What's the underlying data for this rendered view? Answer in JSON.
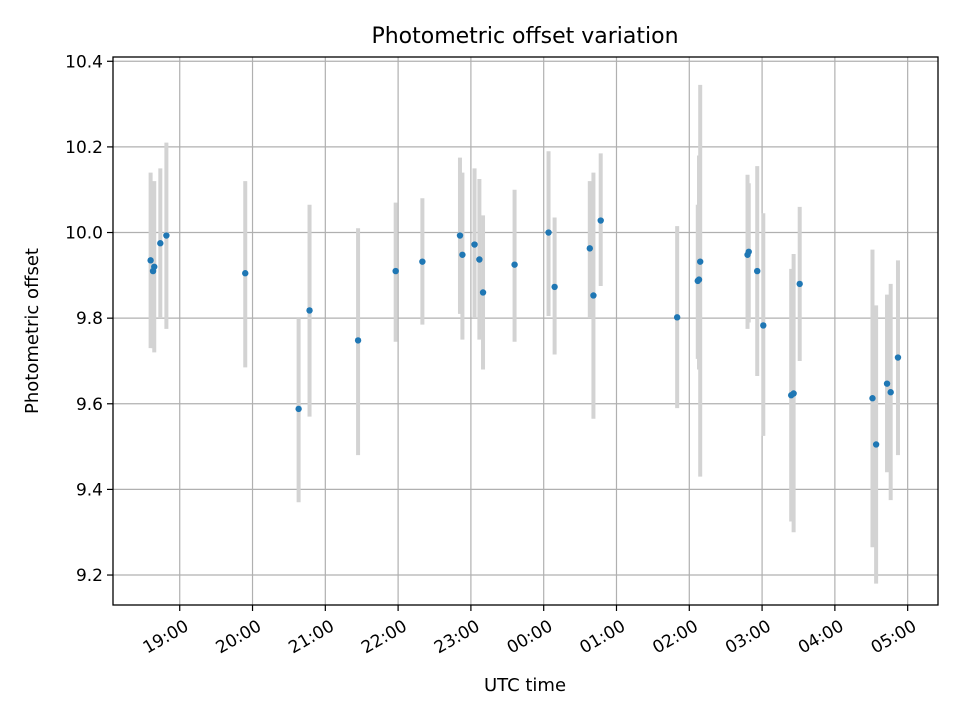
{
  "chart_data": {
    "type": "scatter",
    "title": "Photometric offset variation",
    "xlabel": "UTC time",
    "ylabel": "Photometric offset",
    "xlim": [
      "18:05",
      "05:25"
    ],
    "ylim": [
      9.13,
      10.41
    ],
    "x_ticks": [
      "19:00",
      "20:00",
      "21:00",
      "22:00",
      "23:00",
      "00:00",
      "01:00",
      "02:00",
      "03:00",
      "04:00",
      "05:00"
    ],
    "y_ticks": [
      "9.2",
      "9.4",
      "9.6",
      "9.8",
      "10.0",
      "10.2",
      "10.4"
    ],
    "grid": true,
    "colors": {
      "points": "#1f77b4",
      "errorbars": "#d3d3d3",
      "grid": "#b0b0b0"
    },
    "points": [
      {
        "x": "18:36",
        "y": 9.935,
        "yerr_low": 9.73,
        "yerr_high": 10.14
      },
      {
        "x": "18:38",
        "y": 9.91,
        "yerr_low": 9.73,
        "yerr_high": 10.11
      },
      {
        "x": "18:39",
        "y": 9.92,
        "yerr_low": 9.72,
        "yerr_high": 10.12
      },
      {
        "x": "18:44",
        "y": 9.975,
        "yerr_low": 9.8,
        "yerr_high": 10.15
      },
      {
        "x": "18:49",
        "y": 9.993,
        "yerr_low": 9.775,
        "yerr_high": 10.21
      },
      {
        "x": "19:54",
        "y": 9.905,
        "yerr_low": 9.685,
        "yerr_high": 10.12
      },
      {
        "x": "20:38",
        "y": 9.588,
        "yerr_low": 9.37,
        "yerr_high": 9.8
      },
      {
        "x": "20:47",
        "y": 9.818,
        "yerr_low": 9.57,
        "yerr_high": 10.065
      },
      {
        "x": "21:27",
        "y": 9.748,
        "yerr_low": 9.48,
        "yerr_high": 10.01
      },
      {
        "x": "21:58",
        "y": 9.91,
        "yerr_low": 9.745,
        "yerr_high": 10.07
      },
      {
        "x": "22:20",
        "y": 9.932,
        "yerr_low": 9.785,
        "yerr_high": 10.08
      },
      {
        "x": "22:51",
        "y": 9.993,
        "yerr_low": 9.81,
        "yerr_high": 10.175
      },
      {
        "x": "22:53",
        "y": 9.948,
        "yerr_low": 9.75,
        "yerr_high": 10.14
      },
      {
        "x": "23:03",
        "y": 9.972,
        "yerr_low": 9.8,
        "yerr_high": 10.15
      },
      {
        "x": "23:07",
        "y": 9.937,
        "yerr_low": 9.75,
        "yerr_high": 10.125
      },
      {
        "x": "23:10",
        "y": 9.86,
        "yerr_low": 9.68,
        "yerr_high": 10.04
      },
      {
        "x": "23:36",
        "y": 9.925,
        "yerr_low": 9.745,
        "yerr_high": 10.1
      },
      {
        "x": "00:04",
        "y": 10.0,
        "yerr_low": 9.805,
        "yerr_high": 10.19
      },
      {
        "x": "00:09",
        "y": 9.873,
        "yerr_low": 9.715,
        "yerr_high": 10.035
      },
      {
        "x": "00:38",
        "y": 9.963,
        "yerr_low": 9.8,
        "yerr_high": 10.12
      },
      {
        "x": "00:41",
        "y": 9.853,
        "yerr_low": 9.565,
        "yerr_high": 10.14
      },
      {
        "x": "00:47",
        "y": 10.028,
        "yerr_low": 9.875,
        "yerr_high": 10.185
      },
      {
        "x": "01:50",
        "y": 9.802,
        "yerr_low": 9.59,
        "yerr_high": 10.015
      },
      {
        "x": "02:07",
        "y": 9.887,
        "yerr_low": 9.705,
        "yerr_high": 10.065
      },
      {
        "x": "02:08",
        "y": 9.89,
        "yerr_low": 9.68,
        "yerr_high": 10.18
      },
      {
        "x": "02:09",
        "y": 9.932,
        "yerr_low": 9.43,
        "yerr_high": 10.345
      },
      {
        "x": "02:48",
        "y": 9.948,
        "yerr_low": 9.775,
        "yerr_high": 10.135
      },
      {
        "x": "02:49",
        "y": 9.955,
        "yerr_low": 9.79,
        "yerr_high": 10.115
      },
      {
        "x": "02:56",
        "y": 9.91,
        "yerr_low": 9.665,
        "yerr_high": 10.155
      },
      {
        "x": "03:01",
        "y": 9.783,
        "yerr_low": 9.525,
        "yerr_high": 10.045
      },
      {
        "x": "03:24",
        "y": 9.62,
        "yerr_low": 9.325,
        "yerr_high": 9.915
      },
      {
        "x": "03:26",
        "y": 9.624,
        "yerr_low": 9.3,
        "yerr_high": 9.95
      },
      {
        "x": "03:31",
        "y": 9.88,
        "yerr_low": 9.7,
        "yerr_high": 10.06
      },
      {
        "x": "04:31",
        "y": 9.613,
        "yerr_low": 9.265,
        "yerr_high": 9.96
      },
      {
        "x": "04:34",
        "y": 9.505,
        "yerr_low": 9.18,
        "yerr_high": 9.83
      },
      {
        "x": "04:43",
        "y": 9.647,
        "yerr_low": 9.44,
        "yerr_high": 9.855
      },
      {
        "x": "04:46",
        "y": 9.627,
        "yerr_low": 9.375,
        "yerr_high": 9.88
      },
      {
        "x": "04:52",
        "y": 9.708,
        "yerr_low": 9.48,
        "yerr_high": 9.935
      }
    ]
  }
}
